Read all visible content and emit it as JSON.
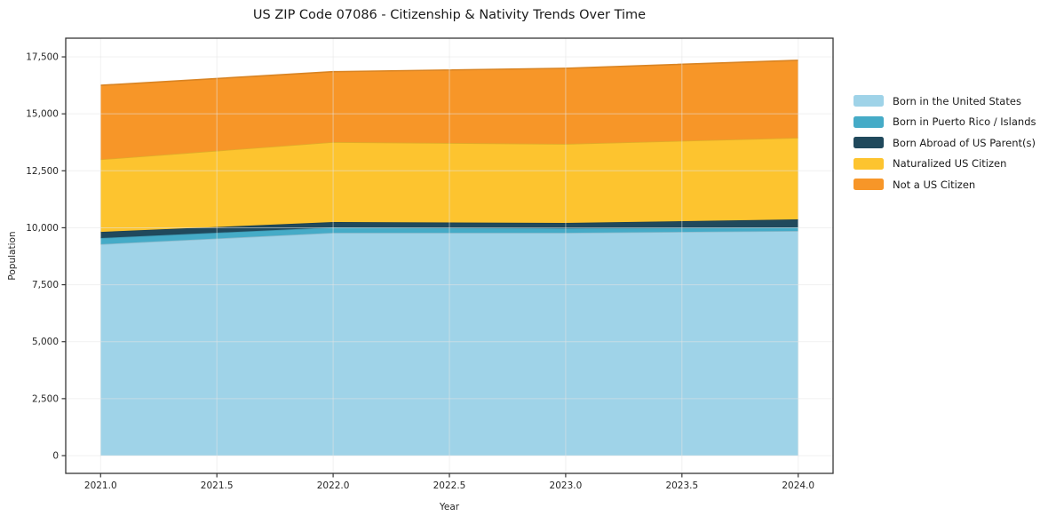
{
  "chart_data": {
    "type": "area",
    "stacked": true,
    "title": "US ZIP Code 07086 - Citizenship & Nativity Trends Over Time",
    "xlabel": "Year",
    "ylabel": "Population",
    "x": [
      2021,
      2022,
      2023,
      2024
    ],
    "x_ticks": [
      2021.0,
      2021.5,
      2022.0,
      2022.5,
      2023.0,
      2023.5,
      2024.0
    ],
    "x_tick_labels": [
      "2021.0",
      "2021.5",
      "2022.0",
      "2022.5",
      "2023.0",
      "2023.5",
      "2024.0"
    ],
    "y_ticks": [
      0,
      2500,
      5000,
      7500,
      10000,
      12500,
      15000,
      17500
    ],
    "y_tick_labels": [
      "0",
      "2,500",
      "5,000",
      "7,500",
      "10,000",
      "12,500",
      "15,000",
      "17,500"
    ],
    "xlim": [
      2020.85,
      2024.15
    ],
    "ylim": [
      -780,
      18320
    ],
    "grid": true,
    "legend_position": "right-outside",
    "series": [
      {
        "name": "Born in the United States",
        "color": "#9FD3E8",
        "values": [
          9280,
          9780,
          9780,
          9860
        ]
      },
      {
        "name": "Born in Puerto Rico / Islands",
        "color": "#45ABC7",
        "values": [
          270,
          235,
          195,
          160
        ]
      },
      {
        "name": "Born Abroad of US Parent(s)",
        "color": "#20495C",
        "values": [
          270,
          235,
          235,
          350
        ]
      },
      {
        "name": "Naturalized US Citizen",
        "color": "#FDC42F",
        "values": [
          3180,
          3510,
          3470,
          3580
        ]
      },
      {
        "name": "Not a US Citizen",
        "color": "#F79628",
        "values": [
          3250,
          3090,
          3320,
          3400
        ]
      }
    ],
    "stacked_totals": [
      16250,
      16850,
      17000,
      17350
    ]
  },
  "colors": {
    "background": "#ffffff",
    "grid": "#e4e4e4",
    "spine": "#363636",
    "text": "#262626"
  }
}
